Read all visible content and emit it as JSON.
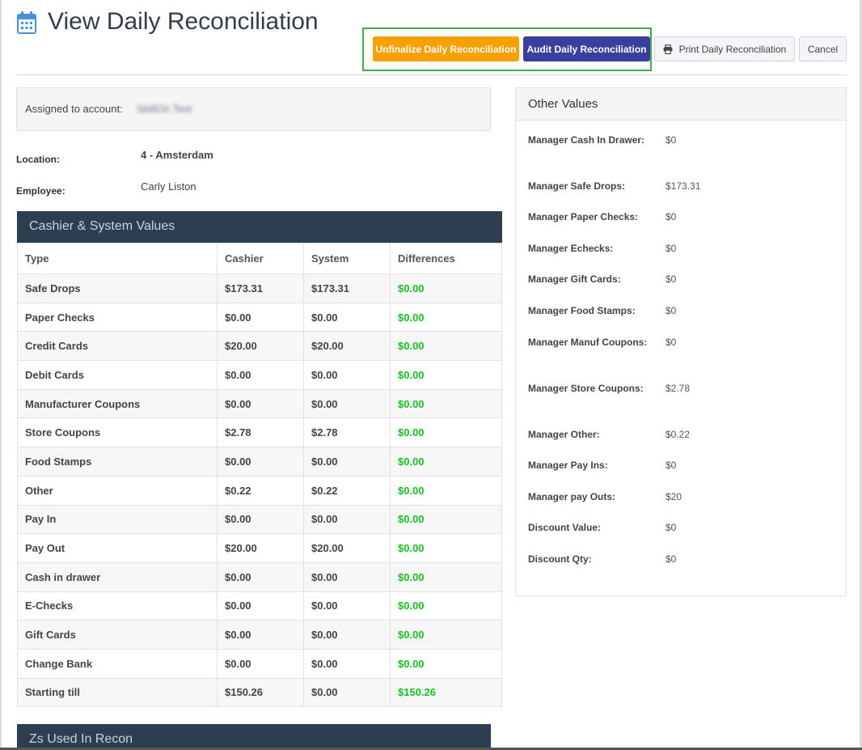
{
  "header": {
    "title": "View Daily Reconciliation",
    "buttons": {
      "unfinalize": "Unfinalize Daily Reconciliation",
      "audit": "Audit Daily Reconciliation",
      "print": "Print Daily Reconciliation",
      "cancel": "Cancel"
    }
  },
  "assigned": {
    "label": "Assigned to account:",
    "value": "SkillOn Test"
  },
  "info": {
    "location_label": "Location:",
    "location_value": "4 - Amsterdam",
    "employee_label": "Employee:",
    "employee_value": "Carly Liston"
  },
  "cashier_system": {
    "title": "Cashier & System Values",
    "columns": [
      "Type",
      "Cashier",
      "System",
      "Differences"
    ],
    "rows": [
      [
        "Safe Drops",
        "$173.31",
        "$173.31",
        "$0.00"
      ],
      [
        "Paper Checks",
        "$0.00",
        "$0.00",
        "$0.00"
      ],
      [
        "Credit Cards",
        "$20.00",
        "$20.00",
        "$0.00"
      ],
      [
        "Debit Cards",
        "$0.00",
        "$0.00",
        "$0.00"
      ],
      [
        "Manufacturer Coupons",
        "$0.00",
        "$0.00",
        "$0.00"
      ],
      [
        "Store Coupons",
        "$2.78",
        "$2.78",
        "$0.00"
      ],
      [
        "Food Stamps",
        "$0.00",
        "$0.00",
        "$0.00"
      ],
      [
        "Other",
        "$0.22",
        "$0.22",
        "$0.00"
      ],
      [
        "Pay In",
        "$0.00",
        "$0.00",
        "$0.00"
      ],
      [
        "Pay Out",
        "$20.00",
        "$20.00",
        "$0.00"
      ],
      [
        "Cash in drawer",
        "$0.00",
        "$0.00",
        "$0.00"
      ],
      [
        "E-Checks",
        "$0.00",
        "$0.00",
        "$0.00"
      ],
      [
        "Gift Cards",
        "$0.00",
        "$0.00",
        "$0.00"
      ],
      [
        "Change Bank",
        "$0.00",
        "$0.00",
        "$0.00"
      ],
      [
        "Starting till",
        "$150.26",
        "$0.00",
        "$150.26"
      ]
    ]
  },
  "zs_used": {
    "title": "Zs Used In Recon"
  },
  "other_values": {
    "title": "Other Values",
    "items": [
      {
        "label": "Manager Cash In Drawer:",
        "value": "$0"
      },
      {
        "label": "Manager Safe Drops:",
        "value": "$173.31"
      },
      {
        "label": "Manager Paper Checks:",
        "value": "$0"
      },
      {
        "label": "Manager Echecks:",
        "value": "$0"
      },
      {
        "label": "Manager Gift Cards:",
        "value": "$0"
      },
      {
        "label": "Manager Food Stamps:",
        "value": "$0"
      },
      {
        "label": "Manager Manuf Coupons:",
        "value": "$0"
      },
      {
        "label": "Manager Store Coupons:",
        "value": "$2.78"
      },
      {
        "label": "Manager Other:",
        "value": "$0.22"
      },
      {
        "label": "Manager Pay Ins:",
        "value": "$0"
      },
      {
        "label": "Manager pay Outs:",
        "value": "$20"
      },
      {
        "label": "Discount Value:",
        "value": "$0"
      },
      {
        "label": "Discount Qty:",
        "value": "$0"
      }
    ]
  },
  "colors": {
    "unfinalize_button": "#f7a100",
    "audit_button": "#3a3f9e",
    "panel_header": "#2c3e50",
    "difference_text": "#18c021",
    "highlight_outline": "#3cad4b"
  },
  "icons": {
    "title": "calendar-icon",
    "print": "printer-icon"
  }
}
